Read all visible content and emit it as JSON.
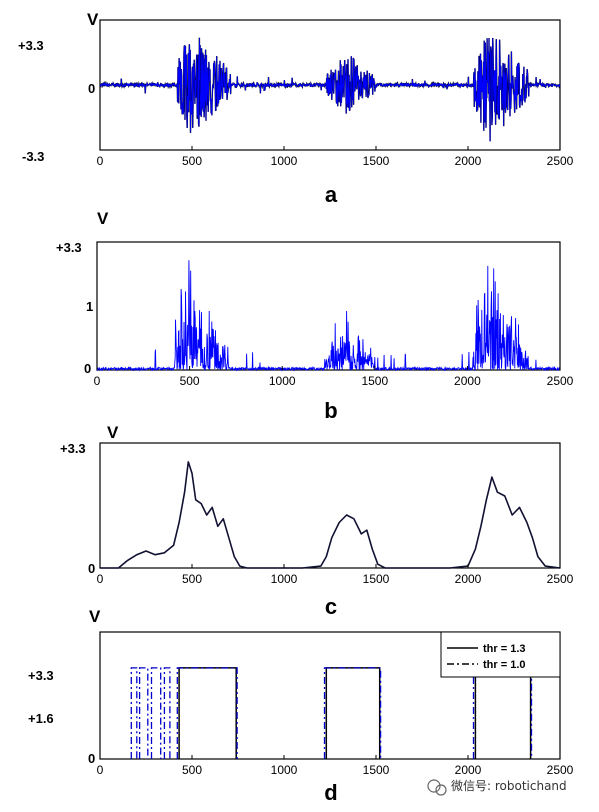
{
  "chart_data": [
    {
      "type": "line",
      "panel_label": "a",
      "y_unit": "V",
      "y_tick_labels": [
        "+3.3",
        "0",
        "-3.3"
      ],
      "xlim": [
        0,
        2500
      ],
      "ylim": [
        -3.3,
        3.3
      ],
      "x_ticks": [
        0,
        500,
        1000,
        1500,
        2000,
        2500
      ],
      "bursts": [
        {
          "start": 420,
          "end": 710,
          "peak_x": 480,
          "peak_value": 3.0,
          "trough_value": -2.7
        },
        {
          "start": 1230,
          "end": 1500,
          "peak_x": 1340,
          "peak_value": 1.7,
          "trough_value": -1.5
        },
        {
          "start": 2030,
          "end": 2330,
          "peak_x": 2110,
          "peak_value": 3.0,
          "trough_value": -3.0
        }
      ],
      "series": [
        {
          "color": "#0000ff",
          "outline_color": "#000000"
        }
      ]
    },
    {
      "type": "line",
      "panel_label": "b",
      "y_unit": "V",
      "y_tick_labels": [
        "+3.3",
        "1",
        "0"
      ],
      "xlim": [
        0,
        2500
      ],
      "ylim": [
        0,
        2.0
      ],
      "x_ticks": [
        0,
        500,
        1000,
        1500,
        2000,
        2500
      ],
      "bursts": [
        {
          "start": 420,
          "end": 710,
          "peak_x": 480,
          "peak_value": 1.7
        },
        {
          "start": 1230,
          "end": 1500,
          "peak_x": 1340,
          "peak_value": 0.9
        },
        {
          "start": 2030,
          "end": 2330,
          "peak_x": 2110,
          "peak_value": 1.7
        }
      ],
      "series": [
        {
          "color": "#0000ff"
        }
      ]
    },
    {
      "type": "line",
      "panel_label": "c",
      "y_unit": "V",
      "y_tick_labels": [
        "+3.3",
        "0"
      ],
      "xlim": [
        0,
        2500
      ],
      "ylim": [
        0,
        3.3
      ],
      "x_ticks": [
        0,
        500,
        1000,
        1500,
        2000,
        2500
      ],
      "series": [
        {
          "color": "#111133",
          "x": [
            0,
            100,
            150,
            200,
            250,
            300,
            350,
            400,
            430,
            460,
            480,
            500,
            520,
            550,
            580,
            610,
            640,
            670,
            700,
            730,
            760,
            800,
            900,
            1000,
            1100,
            1200,
            1230,
            1260,
            1300,
            1340,
            1380,
            1420,
            1450,
            1480,
            1510,
            1550,
            1600,
            1700,
            1800,
            1900,
            2000,
            2040,
            2070,
            2100,
            2130,
            2160,
            2200,
            2240,
            2280,
            2320,
            2350,
            2380,
            2420,
            2500
          ],
          "y": [
            0.0,
            0.0,
            0.2,
            0.35,
            0.45,
            0.35,
            0.4,
            0.6,
            1.2,
            2.0,
            2.8,
            2.5,
            1.8,
            1.7,
            1.4,
            1.6,
            1.1,
            1.3,
            0.8,
            0.3,
            0.05,
            0.0,
            0.0,
            0.0,
            0.0,
            0.05,
            0.3,
            0.8,
            1.2,
            1.4,
            1.3,
            0.9,
            1.0,
            0.5,
            0.1,
            0.0,
            0.0,
            0.0,
            0.0,
            0.0,
            0.05,
            0.5,
            1.1,
            1.8,
            2.4,
            2.0,
            1.9,
            1.4,
            1.6,
            1.2,
            0.8,
            0.3,
            0.05,
            0.0
          ]
        }
      ]
    },
    {
      "type": "line",
      "panel_label": "d",
      "y_unit": "V",
      "y_tick_labels": [
        "+3.3",
        "+1.6",
        "0"
      ],
      "xlim": [
        0,
        2500
      ],
      "ylim": [
        0,
        4.6
      ],
      "x_ticks": [
        0,
        500,
        1000,
        1500,
        2000,
        2500
      ],
      "legend": {
        "placement": "top-right"
      },
      "series": [
        {
          "name": "thr = 1.3",
          "style": "solid",
          "color": "#000000",
          "level": 3.3,
          "intervals": [
            [
              430,
              740
            ],
            [
              1230,
              1520
            ],
            [
              2040,
              2340
            ]
          ]
        },
        {
          "name": "thr = 1.0",
          "style": "dashdot",
          "color": "#0000cc",
          "level": 3.3,
          "intervals": [
            [
              170,
              200
            ],
            [
              215,
              260
            ],
            [
              280,
              330
            ],
            [
              350,
              380
            ],
            [
              420,
              745
            ],
            [
              1220,
              1525
            ],
            [
              2030,
              2345
            ]
          ]
        }
      ]
    }
  ],
  "watermark": {
    "text": "微信号: robotichand"
  }
}
